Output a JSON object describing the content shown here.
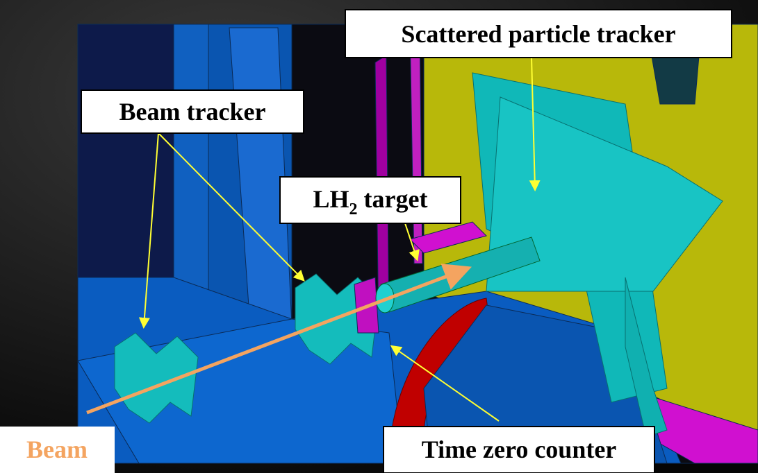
{
  "labels": {
    "scattered_tracker": "Scattered particle tracker",
    "beam_tracker": "Beam tracker",
    "target": {
      "main": "LH",
      "sub": "2",
      "rest": " target"
    },
    "time_zero": "Time zero counter",
    "beam": "Beam"
  }
}
